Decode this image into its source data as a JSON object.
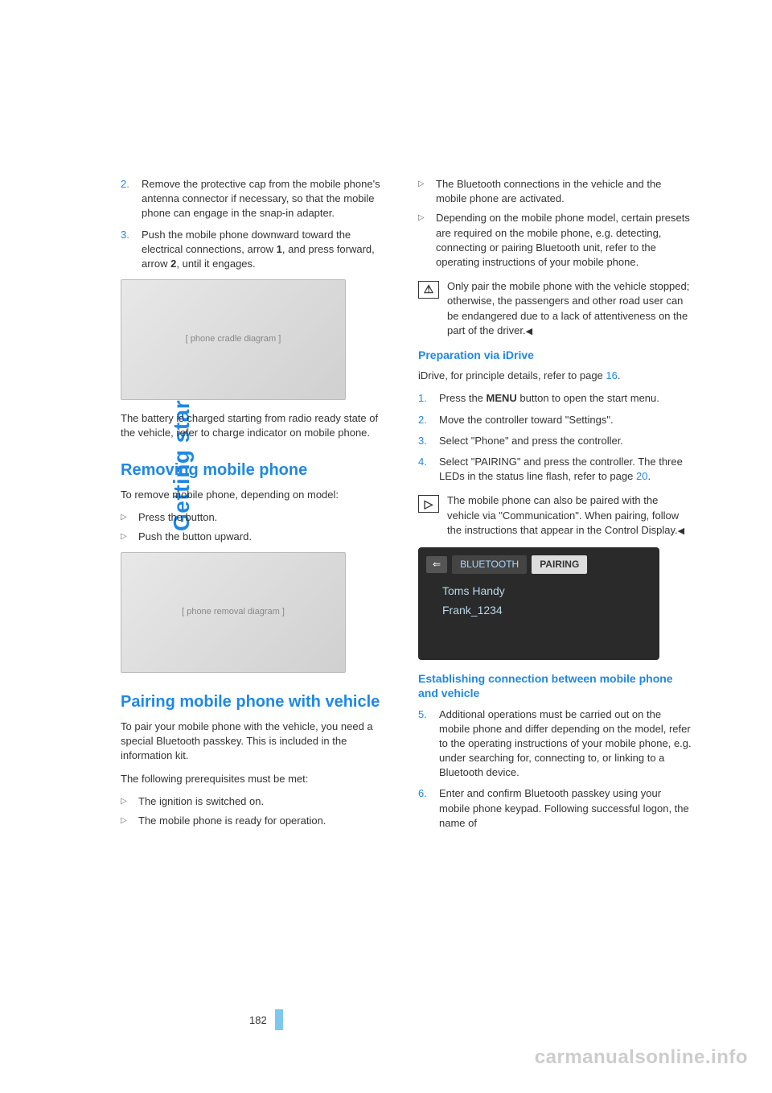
{
  "sidebar_label": "Getting started",
  "page_number": "182",
  "watermark": "carmanualsonline.info",
  "colors": {
    "accent": "#1e88e5",
    "body": "#333333",
    "page_marker": "#7ec8f0",
    "watermark": "#cccccc"
  },
  "left": {
    "step2": {
      "num": "2.",
      "text": "Remove the protective cap from the mobile phone's antenna connector if necessary, so that the mobile phone can engage in the snap-in adapter."
    },
    "step3": {
      "num": "3.",
      "text_a": "Push the mobile phone downward toward the electrical connections, arrow ",
      "b1": "1",
      "text_b": ", and press forward, arrow ",
      "b2": "2",
      "text_c": ", until it engages."
    },
    "img1_alt": "[ phone cradle diagram ]",
    "battery_note": "The battery is charged starting from radio ready state of the vehicle, refer to charge indicator on mobile phone.",
    "removing_heading": "Removing mobile phone",
    "removing_intro": "To remove mobile phone, depending on model:",
    "removing_b1": "Press the button.",
    "removing_b2": "Push the button upward.",
    "img2_alt": "[ phone removal diagram ]",
    "pairing_heading": "Pairing mobile phone with vehicle",
    "pairing_intro": "To pair your mobile phone with the vehicle, you need a special Bluetooth passkey. This is included in the information kit.",
    "prereq_intro": "The following prerequisites must be met:",
    "prereq_b1": "The ignition is switched on.",
    "prereq_b2": "The mobile phone is ready for operation."
  },
  "right": {
    "prereq_b3": "The Bluetooth connections in the vehicle and the mobile phone are activated.",
    "prereq_b4": "Depending on the mobile phone model, certain presets are required on the mobile phone, e.g. detecting, connecting or pairing Bluetooth unit, refer to the operating instructions of your mobile phone.",
    "warning": "Only pair the mobile phone with the vehicle stopped; otherwise, the passengers and other road user can be endangered due to a lack of attentiveness on the part of the driver.",
    "prep_heading": "Preparation via iDrive",
    "prep_intro_a": "iDrive, for principle details, refer to page ",
    "prep_intro_link": "16",
    "prep_intro_b": ".",
    "step1": {
      "num": "1.",
      "text_a": "Press the ",
      "bold": "MENU",
      "text_b": " button to open the start menu."
    },
    "step2": {
      "num": "2.",
      "text": "Move the controller toward \"Settings\"."
    },
    "step3": {
      "num": "3.",
      "text": "Select \"Phone\" and press the controller."
    },
    "step4": {
      "num": "4.",
      "text_a": "Select \"PAIRING\" and press the controller. The three LEDs in the status line flash, refer to page ",
      "link": "20",
      "text_b": "."
    },
    "tip": "The mobile phone can also be paired with the vehicle via \"Communication\". When pairing, follow the instructions that appear in the Control Display.",
    "idrive": {
      "back": "⇐",
      "tab1": "BLUETOOTH",
      "tab2": "PAIRING",
      "item1": "Toms Handy",
      "item2": "Frank_1234"
    },
    "establish_heading": "Establishing connection between mobile phone and vehicle",
    "step5": {
      "num": "5.",
      "text": "Additional operations must be carried out on the mobile phone and differ depending on the model, refer to the operating instructions of your mobile phone, e.g. under searching for, connecting to, or linking to a Bluetooth device."
    },
    "step6": {
      "num": "6.",
      "text": "Enter and confirm Bluetooth passkey using your mobile phone keypad. Following successful logon, the name of"
    }
  }
}
